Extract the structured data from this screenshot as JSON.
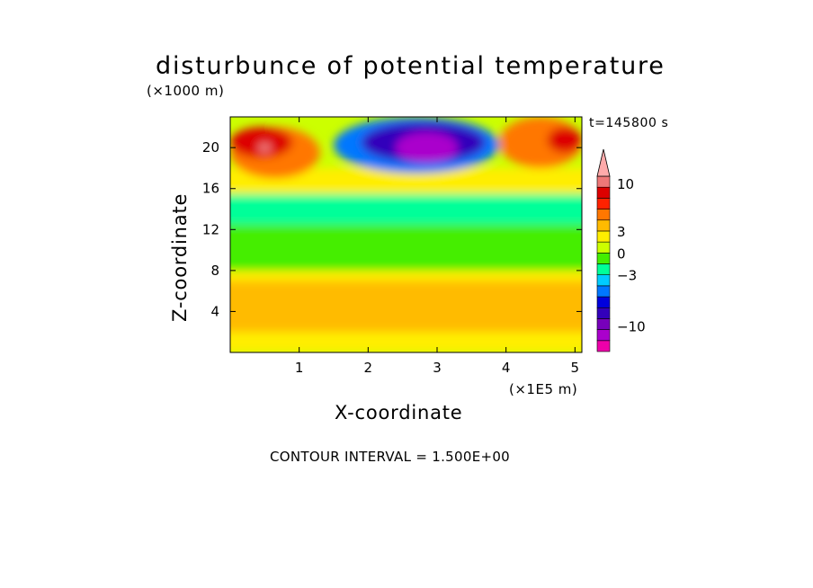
{
  "chart_data": {
    "type": "heatmap",
    "title": "disturbunce of potential temperature",
    "xlabel": "X-coordinate",
    "ylabel": "Z-coordinate",
    "x_unit": "(×1E5 m)",
    "y_unit": "(×1000 m)",
    "time_label": "t=145800 s",
    "contour_interval_label": "CONTOUR INTERVAL = 1.500E+00",
    "xlim": [
      0,
      5.1
    ],
    "ylim": [
      0,
      23
    ],
    "x_ticks": [
      1,
      2,
      3,
      4,
      5
    ],
    "y_ticks": [
      4,
      8,
      12,
      16,
      20
    ],
    "colorbar": {
      "levels": [
        -15,
        -12,
        -10.5,
        -9,
        -7.5,
        -6,
        -4.5,
        -3,
        -1.5,
        0,
        1.5,
        3,
        4.5,
        6,
        7.5,
        9,
        12,
        15
      ],
      "colors": [
        "#ee00aa",
        "#aa00cc",
        "#7700bb",
        "#3300bb",
        "#0000dd",
        "#0077ff",
        "#00ccff",
        "#00ff99",
        "#44ee00",
        "#ccff00",
        "#ffee00",
        "#ffbb00",
        "#ff7700",
        "#ff2200",
        "#dd0000",
        "#ee7777",
        "#ffaaaa"
      ],
      "tick_labels": [
        "10",
        "3",
        "0",
        "−3",
        "−10"
      ],
      "tick_values": [
        10,
        3,
        0,
        -3,
        -10
      ]
    },
    "regions": [
      {
        "level": 1.5,
        "x": [
          0,
          5.1
        ],
        "z": [
          0,
          2
        ]
      },
      {
        "level": 3,
        "x": [
          0,
          5.1
        ],
        "z": [
          2,
          7
        ]
      },
      {
        "level": 1.5,
        "x": [
          0,
          5.1
        ],
        "z": [
          7,
          8
        ]
      },
      {
        "level": -1.5,
        "x": [
          0,
          5.1
        ],
        "z": [
          8,
          12.5
        ]
      },
      {
        "level": -3,
        "x": [
          0,
          5.1
        ],
        "z": [
          12.5,
          15.5
        ]
      },
      {
        "level": 1.5,
        "x": [
          0,
          5.1
        ],
        "z": [
          15.5,
          18
        ]
      },
      {
        "level": 4.5,
        "x": [
          0,
          1.3
        ],
        "z": [
          17,
          22
        ]
      },
      {
        "level": 7.5,
        "x": [
          0,
          0.9
        ],
        "z": [
          19,
          22
        ]
      },
      {
        "level": 9,
        "x": [
          0.4,
          0.6
        ],
        "z": [
          19.5,
          20.5
        ]
      },
      {
        "level": 4.5,
        "x": [
          3.9,
          5.1
        ],
        "z": [
          18,
          23
        ]
      },
      {
        "level": 7.5,
        "x": [
          4.6,
          5.1
        ],
        "z": [
          19.5,
          22
        ]
      },
      {
        "level": -6,
        "x": [
          1.5,
          3.9
        ],
        "z": [
          17.5,
          23
        ]
      },
      {
        "level": -9,
        "x": [
          1.9,
          3.7
        ],
        "z": [
          18.5,
          22.5
        ]
      },
      {
        "level": -12,
        "x": [
          2.4,
          3.3
        ],
        "z": [
          18.5,
          21.5
        ]
      }
    ]
  }
}
